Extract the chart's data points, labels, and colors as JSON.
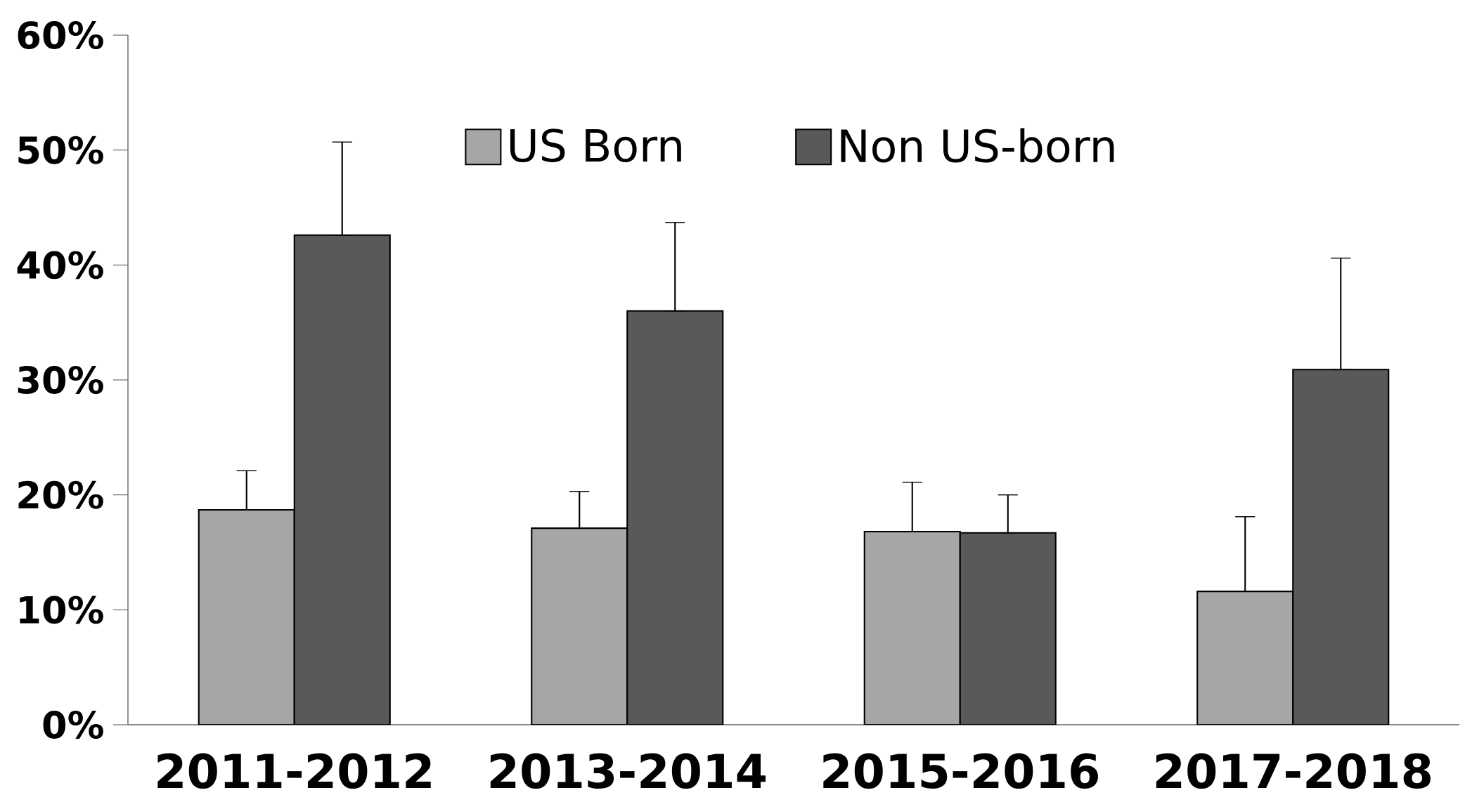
{
  "chart_data": {
    "type": "bar",
    "categories": [
      "2011-2012",
      "2013-2014",
      "2015-2016",
      "2017-2018"
    ],
    "series": [
      {
        "name": "US Born",
        "color": "#a6a6a6",
        "values": [
          18.7,
          17.1,
          16.8,
          11.6
        ],
        "errors": [
          [
            18.7,
            22.1
          ],
          [
            17.1,
            20.3
          ],
          [
            16.8,
            21.1
          ],
          [
            11.6,
            18.1
          ]
        ]
      },
      {
        "name": "Non US-born",
        "color": "#595959",
        "values": [
          42.6,
          36.0,
          16.7,
          30.9
        ],
        "errors": [
          [
            42.6,
            50.7
          ],
          [
            36.0,
            43.7
          ],
          [
            16.7,
            20.0
          ],
          [
            30.9,
            40.6
          ]
        ]
      }
    ],
    "ylim": [
      0,
      60
    ],
    "yticks": [
      {
        "value": 0,
        "label": "0%"
      },
      {
        "value": 10,
        "label": "10%"
      },
      {
        "value": 20,
        "label": "20%"
      },
      {
        "value": 30,
        "label": "30%"
      },
      {
        "value": 40,
        "label": "40%"
      },
      {
        "value": 50,
        "label": "50%"
      },
      {
        "value": 60,
        "label": "60%"
      }
    ],
    "legend": "top"
  }
}
